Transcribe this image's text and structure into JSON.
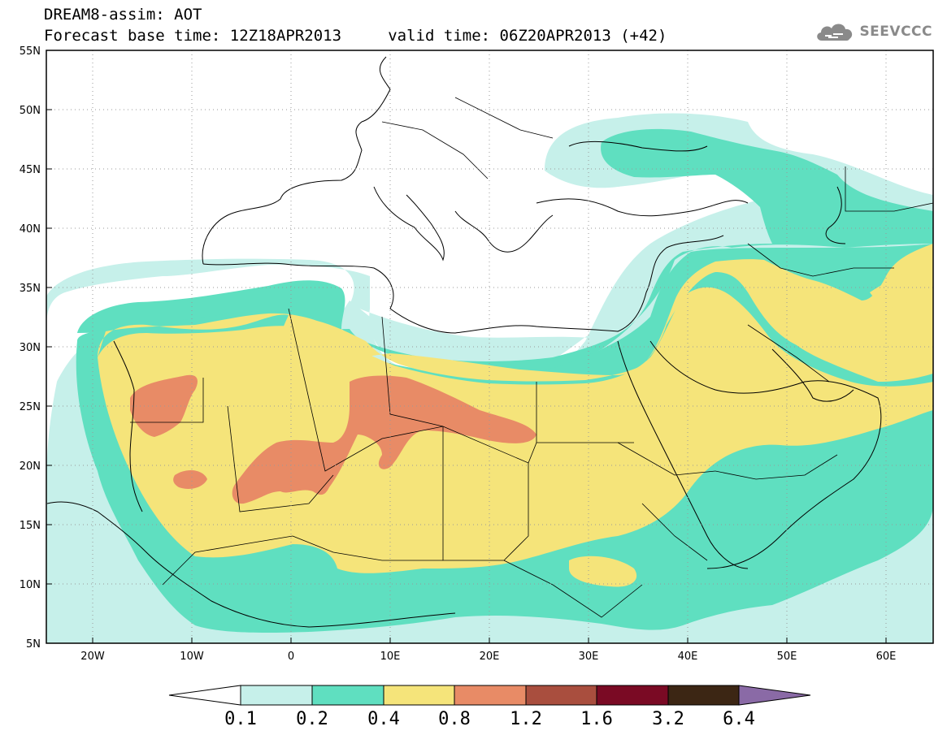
{
  "title": {
    "line1": "DREAM8-assim: AOT",
    "line2": "Forecast base time: 12Z18APR2013     valid time: 06Z20APR2013 (+42)"
  },
  "logo": {
    "text": "SEEVCCC",
    "icon": "cloud-icon"
  },
  "map": {
    "projection": "lat-lon",
    "lon_range": [
      -25,
      65
    ],
    "lat_range": [
      5,
      55
    ],
    "grid": "dotted",
    "lon_ticks": [
      "20W",
      "10W",
      "0",
      "10E",
      "20E",
      "30E",
      "40E",
      "50E",
      "60E"
    ],
    "lat_ticks": [
      "55N",
      "50N",
      "45N",
      "40N",
      "35N",
      "30N",
      "25N",
      "20N",
      "15N",
      "10N",
      "5N"
    ]
  },
  "colorbar": {
    "labels": [
      "0.1",
      "0.2",
      "0.4",
      "0.8",
      "1.2",
      "1.6",
      "3.2",
      "6.4"
    ],
    "colors": [
      "#c6f0ea",
      "#5fdfc0",
      "#f5e47a",
      "#e88b66",
      "#a94e3e",
      "#7a0a24",
      "#3c2614",
      "#8a6aa6"
    ]
  }
}
